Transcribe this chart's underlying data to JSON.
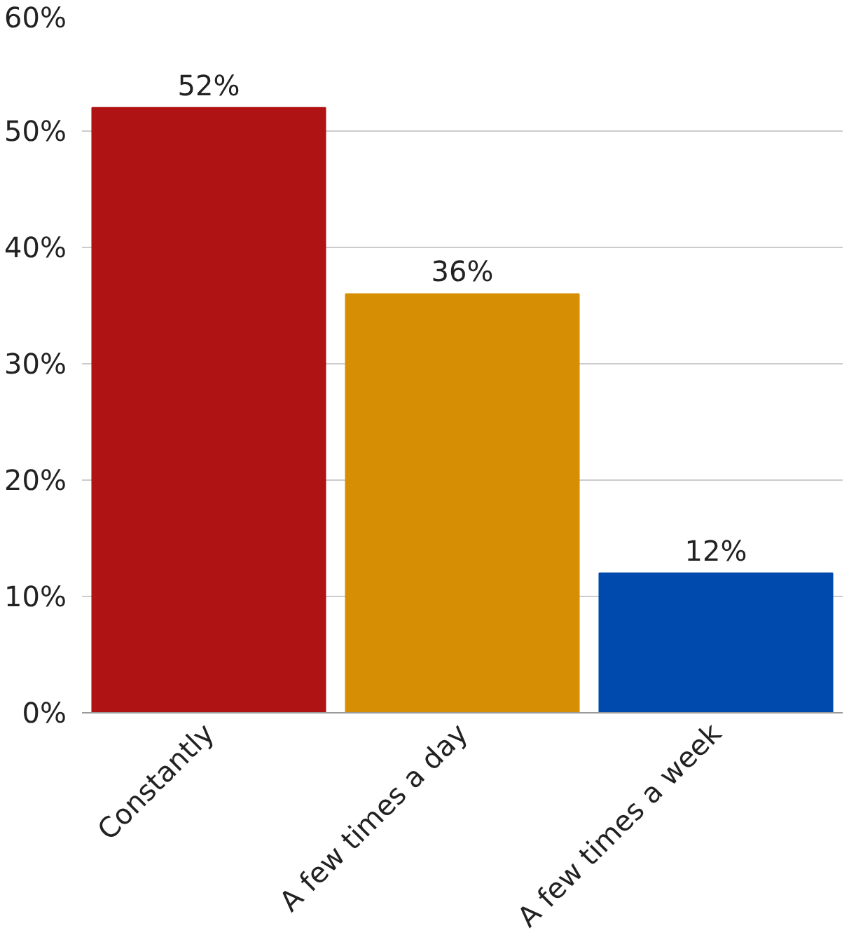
{
  "chart_data": {
    "type": "bar",
    "categories": [
      "Constantly",
      "A few times a day",
      "A few times a week"
    ],
    "values": [
      52,
      36,
      12
    ],
    "colors": [
      "#b01313",
      "#d68f05",
      "#004aad"
    ],
    "value_labels": [
      "52%",
      "36%",
      "12%"
    ],
    "ylim": [
      0,
      60
    ],
    "yticks": [
      {
        "value": 0,
        "label": "0%"
      },
      {
        "value": 10,
        "label": "10%"
      },
      {
        "value": 20,
        "label": "20%"
      },
      {
        "value": 30,
        "label": "30%"
      },
      {
        "value": 40,
        "label": "40%"
      },
      {
        "value": 50,
        "label": "50%"
      },
      {
        "value": 60,
        "label": "60%"
      }
    ],
    "grid": "y"
  }
}
